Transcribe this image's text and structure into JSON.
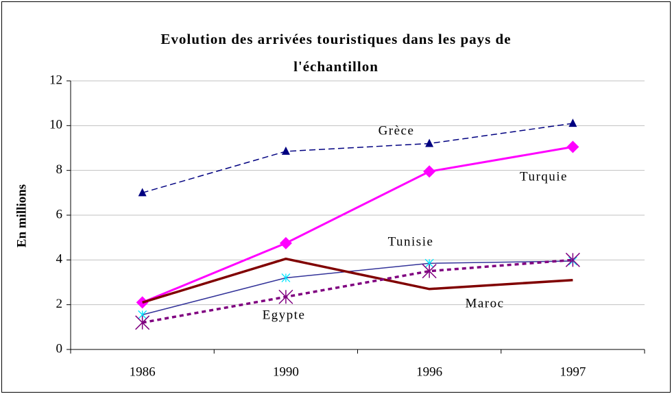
{
  "chart_data": {
    "type": "line",
    "title": "Evolution des arrivées touristiques dans les pays de l'échantillon",
    "y_label": "En millions",
    "categories": [
      "1986",
      "1990",
      "1996",
      "1997"
    ],
    "ylim": [
      0,
      12
    ],
    "yticks": [
      0,
      2,
      4,
      6,
      8,
      10,
      12
    ],
    "grid": true,
    "series": [
      {
        "name": "Grèce",
        "color": "#000080",
        "dash": "dashed",
        "marker": "triangle",
        "values": [
          7.0,
          8.85,
          9.2,
          10.1
        ]
      },
      {
        "name": "Turquie",
        "color": "#ff00ff",
        "dash": "solid",
        "marker": "diamond",
        "values": [
          2.1,
          4.75,
          7.95,
          9.05
        ]
      },
      {
        "name": "Tunisie",
        "color": "#333399",
        "dash": "solid",
        "marker": "asterisk",
        "marker_color": "#00e5ff",
        "values": [
          1.55,
          3.2,
          3.85,
          3.95
        ]
      },
      {
        "name": "Maroc",
        "color": "#800000",
        "dash": "solid",
        "marker": "none",
        "values": [
          2.1,
          4.05,
          2.7,
          3.1
        ]
      },
      {
        "name": "Egypte",
        "color": "#800080",
        "dash": "dotted",
        "marker": "star",
        "values": [
          1.2,
          2.35,
          3.5,
          4.0
        ]
      }
    ]
  }
}
